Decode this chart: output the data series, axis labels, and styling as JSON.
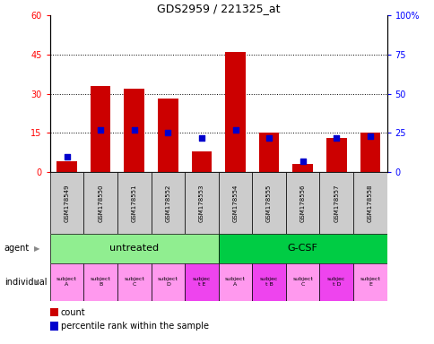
{
  "title": "GDS2959 / 221325_at",
  "samples": [
    "GSM178549",
    "GSM178550",
    "GSM178551",
    "GSM178552",
    "GSM178553",
    "GSM178554",
    "GSM178555",
    "GSM178556",
    "GSM178557",
    "GSM178558"
  ],
  "counts": [
    4,
    33,
    32,
    28,
    8,
    46,
    15,
    3,
    13,
    15
  ],
  "percentile_ranks": [
    10,
    27,
    27,
    25,
    22,
    27,
    22,
    7,
    22,
    23
  ],
  "ylim_left": [
    0,
    60
  ],
  "ylim_right": [
    0,
    100
  ],
  "yticks_left": [
    0,
    15,
    30,
    45,
    60
  ],
  "yticks_right": [
    0,
    25,
    50,
    75,
    100
  ],
  "ytick_labels_left": [
    "0",
    "15",
    "30",
    "45",
    "60"
  ],
  "ytick_labels_right": [
    "0",
    "25",
    "50",
    "75",
    "100%"
  ],
  "agent_groups": [
    {
      "label": "untreated",
      "start": 0,
      "end": 5,
      "color": "#90EE90"
    },
    {
      "label": "G-CSF",
      "start": 5,
      "end": 10,
      "color": "#00CC44"
    }
  ],
  "individual_labels": [
    "subject\nA",
    "subject\nB",
    "subject\nC",
    "subject\nD",
    "subjec\nt E",
    "subject\nA",
    "subjec\nt B",
    "subject\nC",
    "subjec\nt D",
    "subject\nE"
  ],
  "individual_highlight": [
    false,
    false,
    false,
    false,
    true,
    false,
    true,
    false,
    true,
    false
  ],
  "bar_color": "#CC0000",
  "percentile_color": "#0000CC",
  "sample_bg_color": "#CCCCCC",
  "indiv_normal_color": "#FF99EE",
  "indiv_highlight_color": "#EE44EE"
}
